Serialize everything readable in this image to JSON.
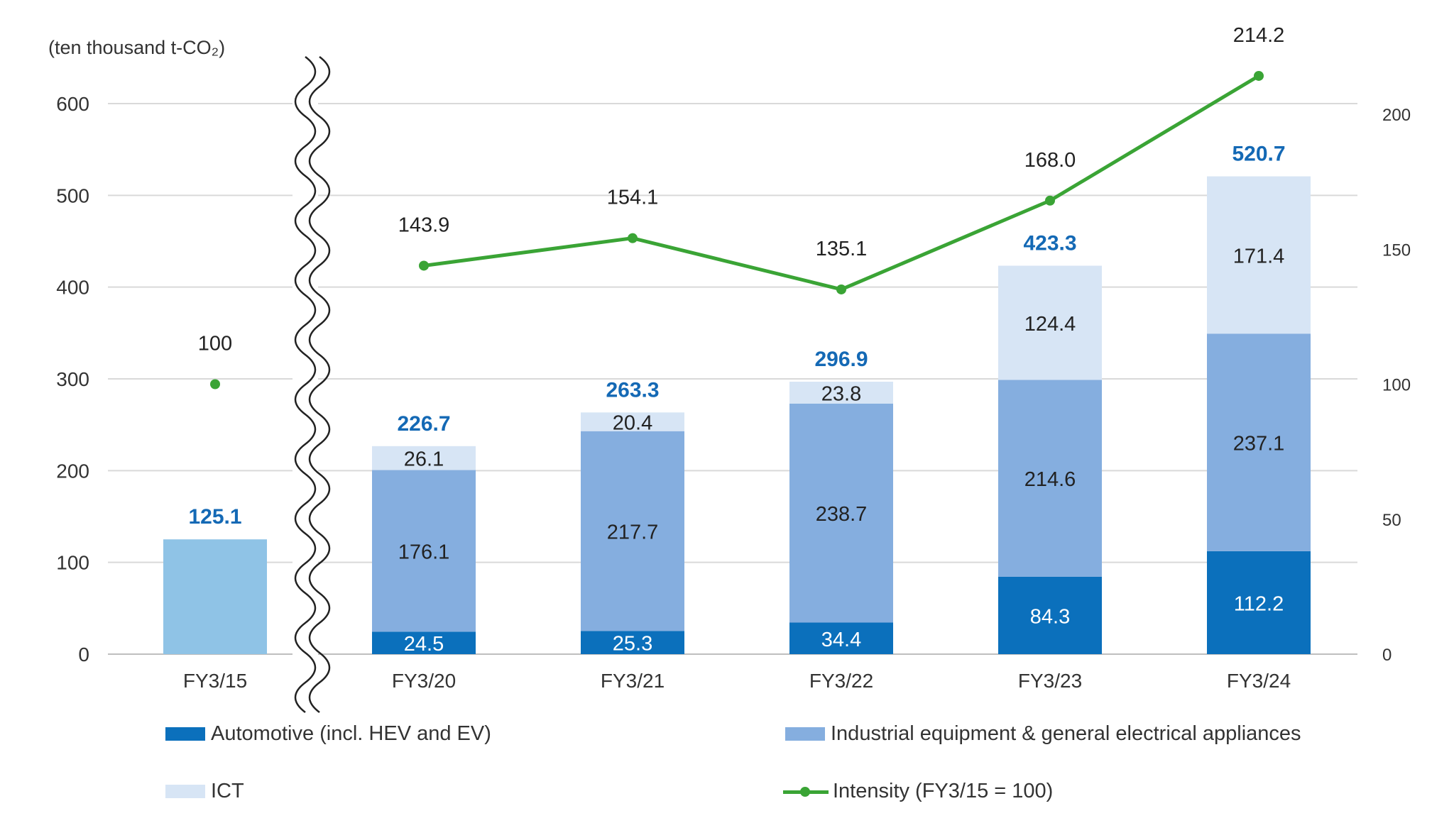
{
  "chart_data": {
    "type": "bar",
    "subtype": "stacked bar with line (secondary axis)",
    "ylabel": "(ten thousand t-CO₂)",
    "ylim": [
      0,
      600
    ],
    "yticks": [
      0,
      100,
      200,
      300,
      400,
      500,
      600
    ],
    "y2lim": [
      0,
      200
    ],
    "y2ticks": [
      0,
      50,
      100,
      150,
      200
    ],
    "axis_break_after": "FY3/15",
    "categories": [
      "FY3/15",
      "FY3/20",
      "FY3/21",
      "FY3/22",
      "FY3/23",
      "FY3/24"
    ],
    "total_bar": {
      "category": "FY3/15",
      "value": 125.1,
      "color": "#8FC3E6"
    },
    "series": [
      {
        "name": "Automotive (incl. HEV and EV)",
        "color": "#0B70BC",
        "label_color": "#FFFFFF",
        "values": [
          null,
          24.5,
          25.3,
          34.4,
          84.3,
          112.2
        ],
        "labels": [
          "",
          "24.5",
          "25.3",
          "34.4",
          "84.3",
          "112.2"
        ]
      },
      {
        "name": "Industrial equipment & general electrical appliances",
        "color": "#85AEDF",
        "label_color": "#222222",
        "values": [
          null,
          176.1,
          217.7,
          238.7,
          214.6,
          237.1
        ],
        "labels": [
          "",
          "176.1",
          "217.7",
          "238.7",
          "214.6",
          "237.1"
        ]
      },
      {
        "name": "ICT",
        "color": "#D7E5F5",
        "label_color": "#222222",
        "values": [
          null,
          26.1,
          20.4,
          23.8,
          124.4,
          171.4
        ],
        "labels": [
          "",
          "26.1",
          "20.4",
          "23.8",
          "124.4",
          "171.4"
        ]
      }
    ],
    "totals": [
      125.1,
      226.7,
      263.3,
      296.9,
      423.3,
      520.7
    ],
    "total_labels": [
      "125.1",
      "226.7",
      "263.3",
      "296.9",
      "423.3",
      "520.7"
    ],
    "total_label_color": "#1469B5",
    "line": {
      "name": "Intensity (FY3/15 = 100)",
      "color": "#3AA435",
      "axis": "secondary",
      "values": [
        100,
        143.9,
        154.1,
        135.1,
        168.0,
        214.2
      ],
      "labels": [
        "100",
        "143.9",
        "154.1",
        "135.1",
        "168.0",
        "214.2"
      ],
      "connect_from_index": 1
    },
    "legend_position": "bottom"
  },
  "legend": {
    "automotive": "Automotive (incl. HEV and EV)",
    "industrial": "Industrial equipment & general electrical appliances",
    "ict": "ICT",
    "intensity": "Intensity (FY3/15 = 100)"
  }
}
